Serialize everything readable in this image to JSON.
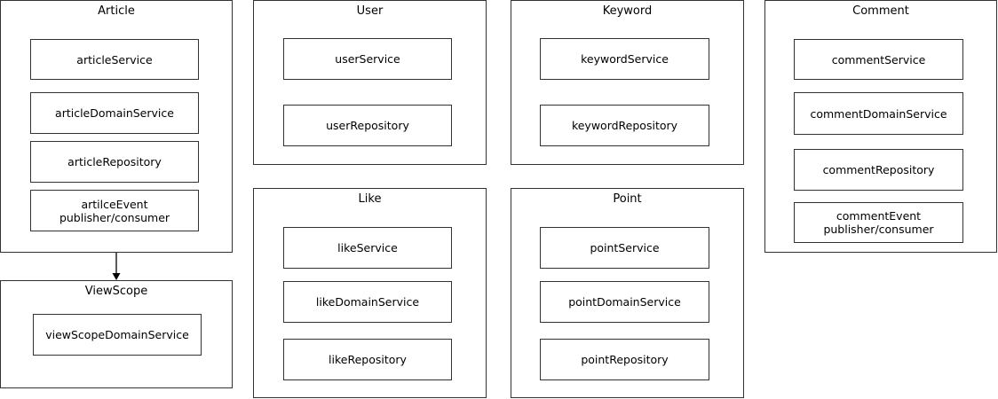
{
  "modules": {
    "article": {
      "title": "Article",
      "components": [
        "articleService",
        "articleDomainService",
        "articleRepository",
        "artilceEvent\npublisher/consumer"
      ]
    },
    "viewscope": {
      "title": "ViewScope",
      "components": [
        "viewScopeDomainService"
      ]
    },
    "user": {
      "title": "User",
      "components": [
        "userService",
        "userRepository"
      ]
    },
    "like": {
      "title": "Like",
      "components": [
        "likeService",
        "likeDomainService",
        "likeRepository"
      ]
    },
    "keyword": {
      "title": "Keyword",
      "components": [
        "keywordService",
        "keywordRepository"
      ]
    },
    "point": {
      "title": "Point",
      "components": [
        "pointService",
        "pointDomainService",
        "pointRepository"
      ]
    },
    "comment": {
      "title": "Comment",
      "components": [
        "commentService",
        "commentDomainService",
        "commentRepository",
        "commentEvent\npublisher/consumer"
      ]
    }
  },
  "edges": [
    {
      "from": "Article",
      "to": "ViewScope"
    }
  ]
}
